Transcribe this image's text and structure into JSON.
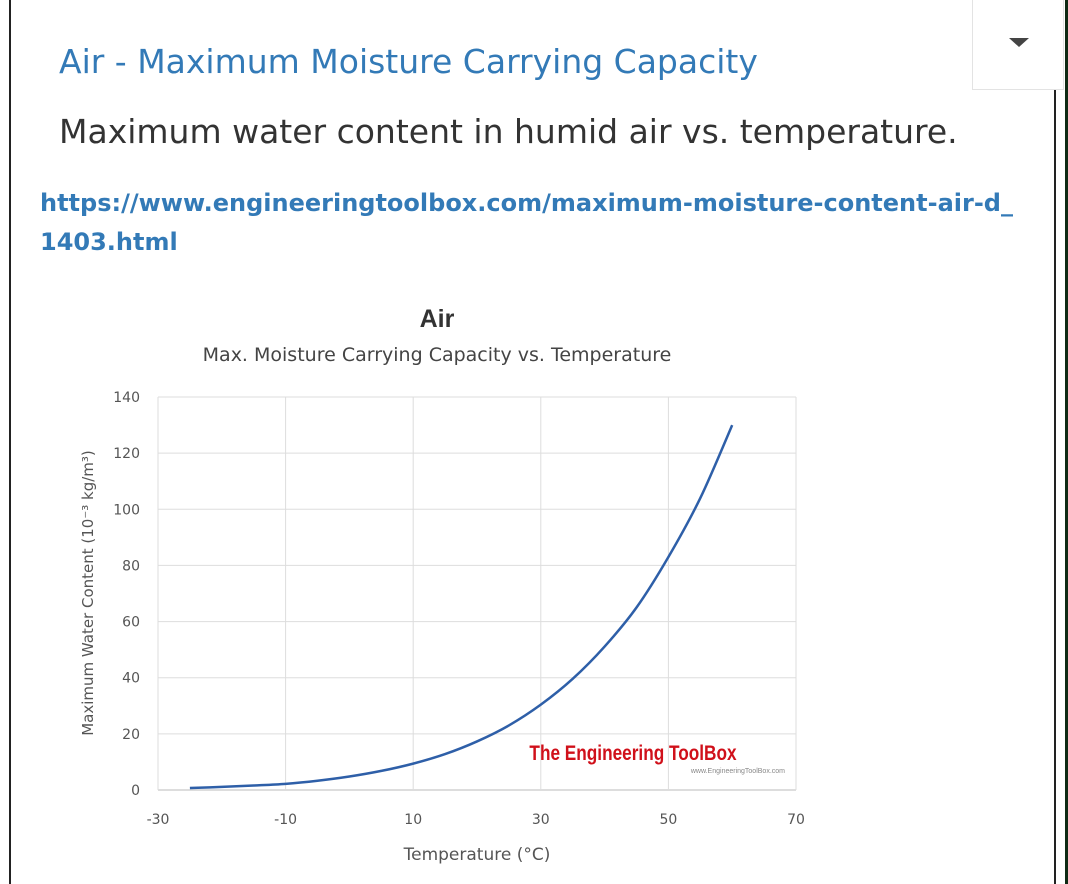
{
  "card": {
    "title": "Air - Maximum Moisture Carrying Capacity",
    "description": "Maximum water content in humid air vs. temperature.",
    "url": "https://www.engineeringtoolbox.com/maximum-moisture-content-air-d_1403.html",
    "dropdown_icon": "caret-down-icon"
  },
  "chart_data": {
    "type": "line",
    "title": "Air",
    "subtitle": "Max. Moisture Carrying Capacity vs. Temperature",
    "xlabel": "Temperature (°C)",
    "ylabel": "Maximum Water Content (10⁻³ kg/m³)",
    "xlim": [
      -30,
      70
    ],
    "ylim": [
      0,
      140
    ],
    "xticks": [
      -30,
      -10,
      10,
      30,
      50,
      70
    ],
    "yticks": [
      0,
      20,
      40,
      60,
      80,
      100,
      120,
      140
    ],
    "grid": true,
    "line_color": "#2e5fa8",
    "watermark": "The Engineering ToolBox",
    "watermark_url": "www.EngineeringToolBox.com",
    "series": [
      {
        "x": [
          -25,
          -20,
          -15,
          -10,
          -5,
          0,
          5,
          10,
          15,
          20,
          25,
          30,
          35,
          40,
          45,
          50,
          55,
          60
        ],
        "y": [
          0.7,
          1.1,
          1.6,
          2.2,
          3.3,
          4.8,
          6.8,
          9.4,
          12.8,
          17.3,
          23.0,
          30.4,
          39.6,
          51.1,
          65.0,
          83.0,
          104.0,
          130.0
        ]
      }
    ]
  }
}
